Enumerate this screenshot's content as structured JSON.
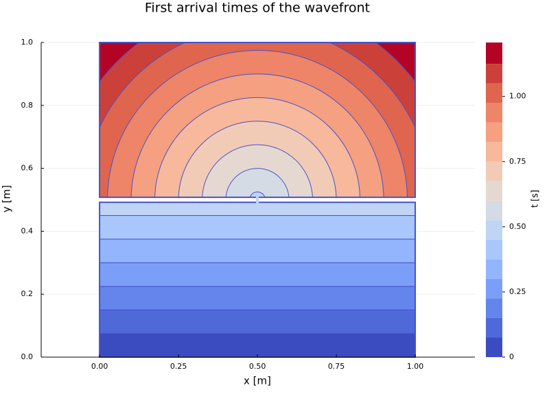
{
  "chart_data": {
    "type": "contour",
    "title": "First arrival times of the wavefront",
    "xlabel": "x [m]",
    "ylabel": "y [m]",
    "colorbar_label": "t [s]",
    "xlim": [
      -0.185,
      1.189
    ],
    "ylim": [
      0,
      1
    ],
    "xticks": [
      {
        "value": 0,
        "label": "0.00"
      },
      0.25,
      {
        "value": 0.5,
        "label": "0.50"
      },
      0.75,
      {
        "value": 1,
        "label": "1.00"
      }
    ],
    "yticks": [
      {
        "value": 0,
        "label": "0.0"
      },
      0.2,
      0.4,
      0.6,
      0.8,
      {
        "value": 1,
        "label": "1.0"
      }
    ],
    "domain": {
      "x": [
        0,
        1
      ],
      "y": [
        0,
        1
      ]
    },
    "source": {
      "x": 0.5,
      "y": 0.5
    },
    "levels": [
      0,
      0.075,
      0.15,
      0.225,
      0.3,
      0.375,
      0.45,
      0.525,
      0.6,
      0.675,
      0.75,
      0.825,
      0.9,
      0.975,
      1.05,
      1.125,
      1.2
    ],
    "clim": [
      0,
      1.207
    ],
    "cticks": [
      0,
      0.25,
      {
        "value": 0.5,
        "label": "0.50"
      },
      0.75,
      {
        "value": 1,
        "label": "1.00"
      }
    ],
    "colors": [
      "#3b4cc0",
      "#4f69d9",
      "#6485ec",
      "#7b9ff9",
      "#93b5fe",
      "#aac7fd",
      "#c0d4f5",
      "#d5dbe5",
      "#e5d8d1",
      "#f2cbb7",
      "#f7b89c",
      "#f5a081",
      "#ee8468",
      "#e0654f",
      "#cc403a",
      "#b40426"
    ],
    "line_color": "#4452c8",
    "grid": true
  }
}
